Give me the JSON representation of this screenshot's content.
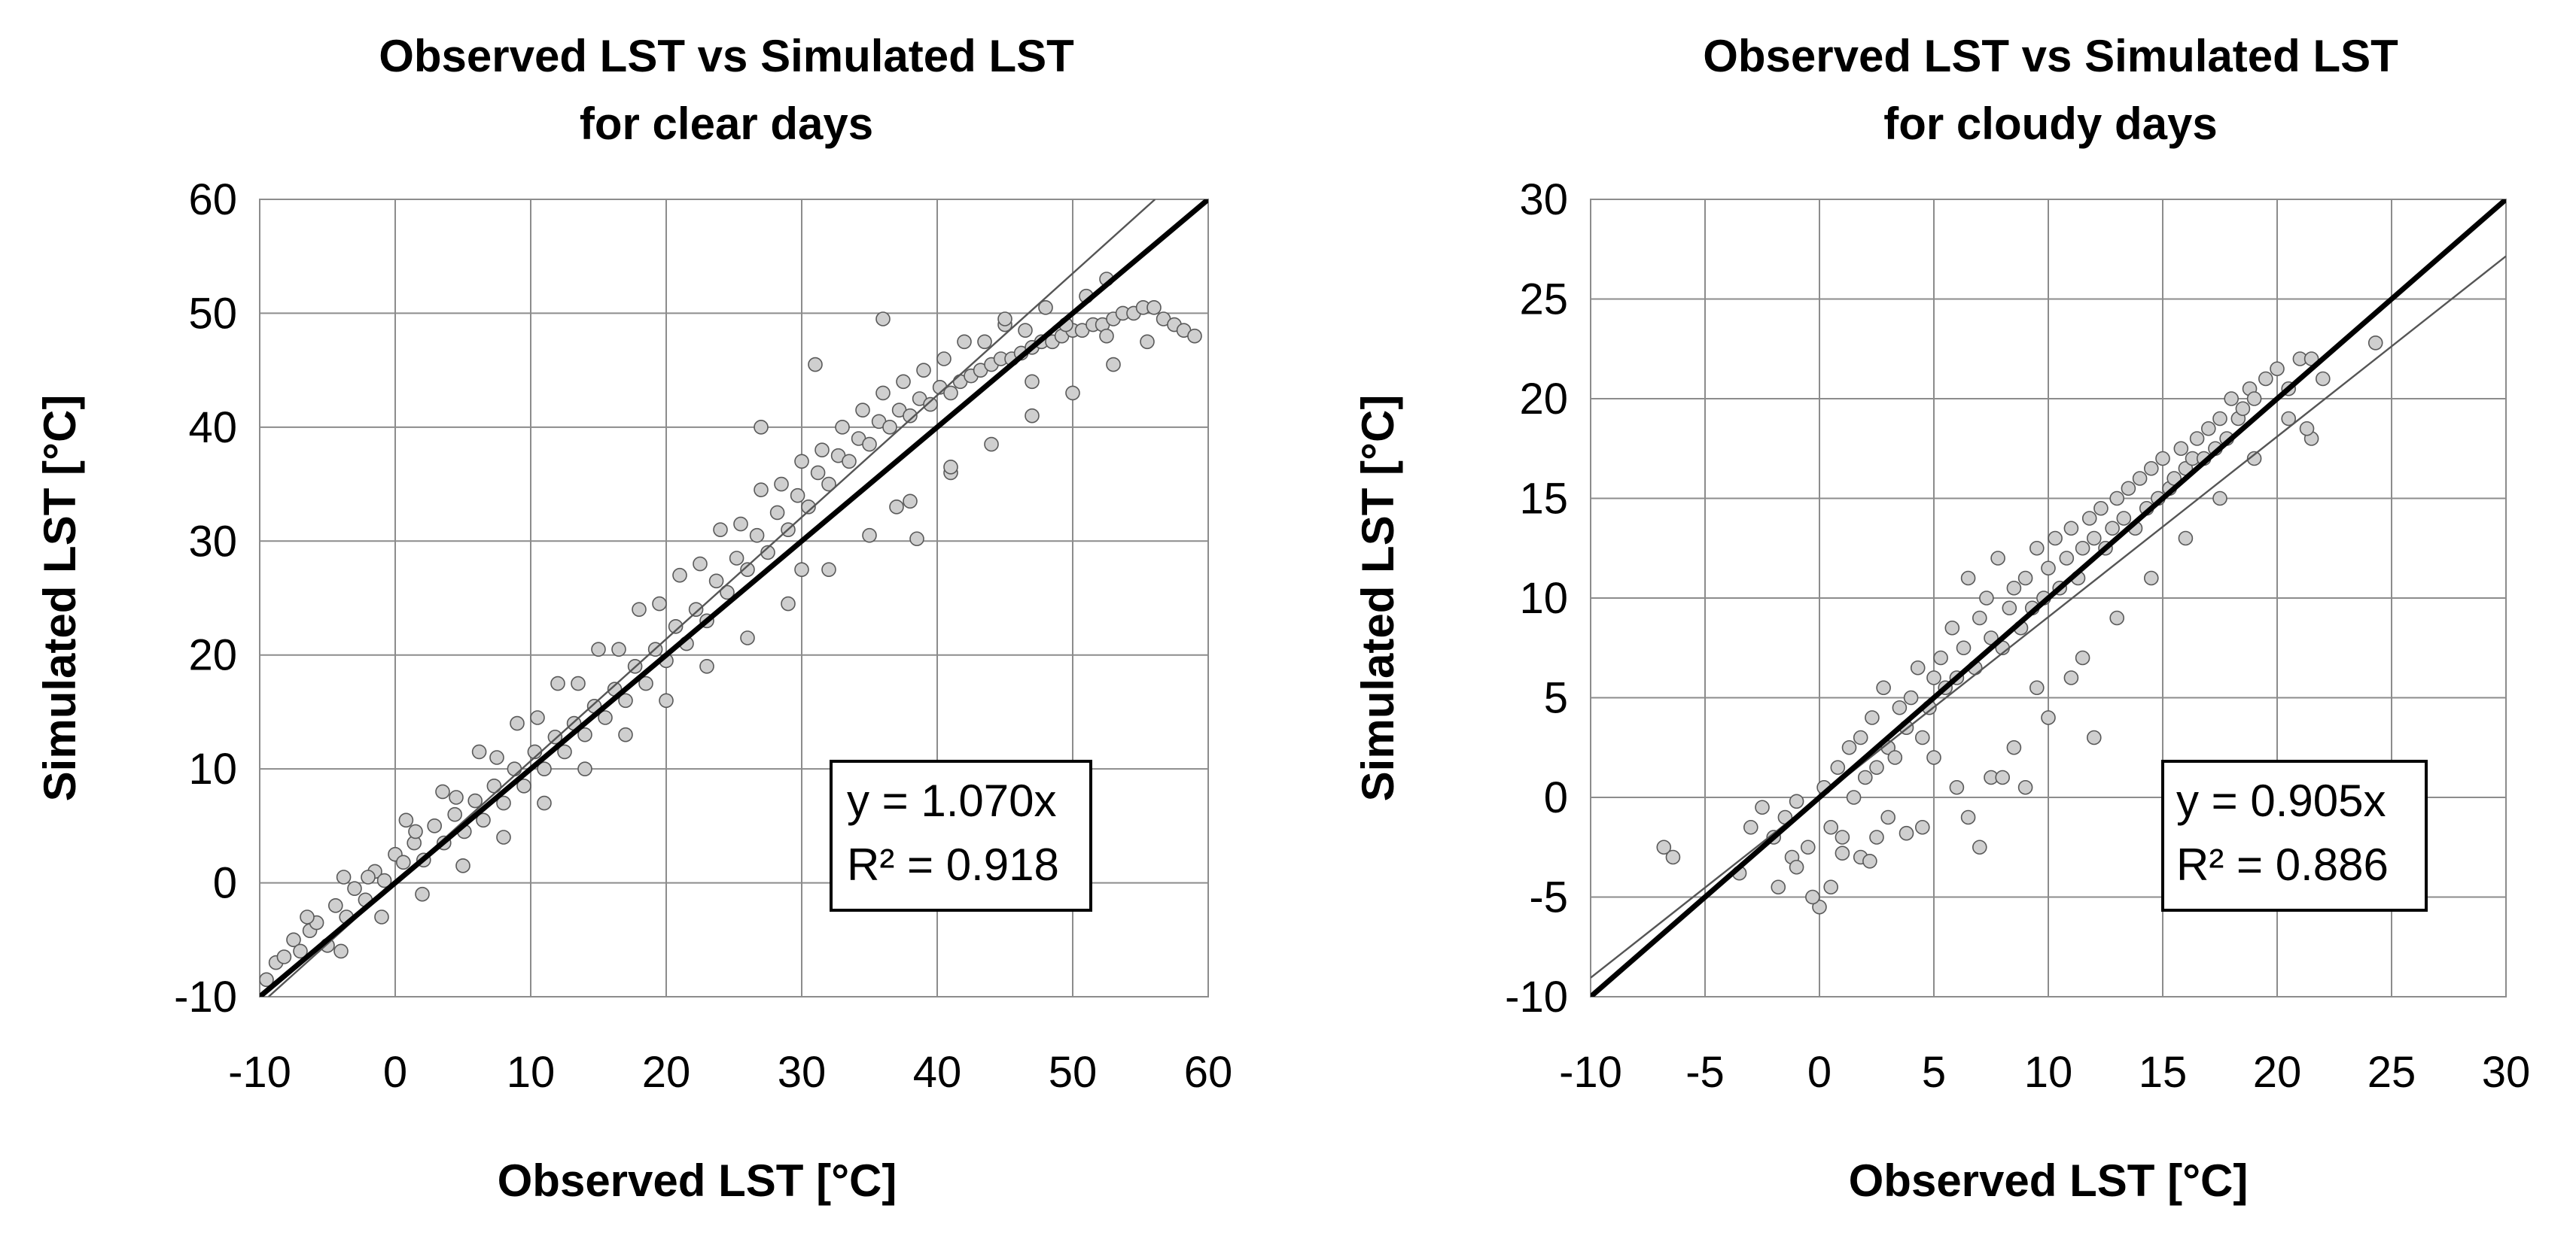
{
  "chart_data": [
    {
      "type": "scatter",
      "title": "Observed LST vs Simulated LST",
      "subtitle": "for clear days",
      "xlabel": "Observed LST [°C]",
      "ylabel": "Simulated LST [°C]",
      "xlim": [
        -10,
        60
      ],
      "ylim": [
        -10,
        60
      ],
      "xticks": [
        -10,
        0,
        10,
        20,
        30,
        40,
        50,
        60
      ],
      "yticks": [
        -10,
        0,
        10,
        20,
        30,
        40,
        50,
        60
      ],
      "xtick_labels": [
        "-10",
        "0",
        "10",
        "20",
        "30",
        "40",
        "50",
        "60"
      ],
      "ytick_labels": [
        "-10",
        "0",
        "10",
        "20",
        "30",
        "40",
        "50",
        "60"
      ],
      "grid": true,
      "reference_line": {
        "label": "1:1",
        "slope": 1
      },
      "trendline": {
        "slope": 1.07,
        "intercept": 0
      },
      "annotation": {
        "equation": "y = 1.070x",
        "r2": "R² = 0.918",
        "placement": "bottom-right"
      },
      "series": [
        {
          "name": "clear days",
          "x": [
            -9.5,
            -8.8,
            -8.2,
            -7.5,
            -7.0,
            -6.3,
            -5.8,
            -5.0,
            -4.4,
            -3.6,
            -3.0,
            -2.2,
            -1.5,
            -0.8,
            0.0,
            0.6,
            1.4,
            2.1,
            2.9,
            3.6,
            4.4,
            5.1,
            5.9,
            6.5,
            7.3,
            8.0,
            8.8,
            9.5,
            10.3,
            11.0,
            11.8,
            12.5,
            13.2,
            14.0,
            14.7,
            15.5,
            16.2,
            17.0,
            17.7,
            18.5,
            19.2,
            20.0,
            20.7,
            21.5,
            22.2,
            23.0,
            23.7,
            24.5,
            25.2,
            26.0,
            26.7,
            27.5,
            28.2,
            29.0,
            29.7,
            30.5,
            31.2,
            32.0,
            32.7,
            33.5,
            34.2,
            35.0,
            35.7,
            36.5,
            37.2,
            38.0,
            38.7,
            39.5,
            40.2,
            41.0,
            41.7,
            42.5,
            43.2,
            44.0,
            44.7,
            45.5,
            46.2,
            47.0,
            47.7,
            48.5,
            49.2,
            50.0,
            50.7,
            51.5,
            52.2,
            53.0,
            53.7,
            54.5,
            55.2,
            56.0,
            56.7,
            57.5,
            58.2,
            59.0,
            -6.5,
            -3.8,
            0.8,
            3.5,
            6.2,
            9.0,
            12.0,
            15.0,
            18.0,
            21.0,
            24.0,
            27.0,
            30.0,
            33.0,
            36.0,
            39.0,
            42.0,
            45.0,
            48.0,
            51.0,
            -4.0,
            -1.0,
            2.0,
            5.0,
            8.0,
            11.0,
            14.0,
            17.0,
            20.0,
            23.0,
            26.0,
            29.0,
            32.0,
            35.0,
            38.0,
            41.0,
            44.0,
            47.0,
            50.0,
            53.0,
            -2.0,
            1.5,
            4.5,
            7.5,
            10.5,
            13.5,
            16.5,
            19.5,
            22.5,
            25.5,
            28.5,
            31.5,
            34.5,
            37.5,
            40.5,
            43.5,
            46.5,
            49.5,
            52.5,
            55.5,
            38.5,
            36.0,
            31.0,
            27.0,
            45.0,
            30.0,
            37.0,
            41.0,
            52.5,
            47.0
          ],
          "y": [
            -8.5,
            -7.0,
            -6.5,
            -5.0,
            -6.0,
            -4.2,
            -3.5,
            -5.5,
            -2.0,
            -3.0,
            -0.5,
            -1.5,
            1.0,
            0.2,
            2.5,
            1.8,
            3.5,
            2.0,
            5.0,
            3.5,
            6.0,
            4.5,
            7.2,
            5.5,
            8.5,
            7.0,
            10.0,
            8.5,
            11.5,
            10.0,
            12.8,
            11.5,
            14.0,
            13.0,
            15.5,
            14.5,
            17.0,
            16.0,
            19.0,
            17.5,
            20.5,
            19.5,
            22.5,
            21.0,
            24.0,
            23.0,
            26.5,
            25.5,
            28.5,
            27.5,
            30.5,
            29.0,
            32.5,
            31.0,
            34.0,
            33.0,
            36.0,
            35.0,
            37.5,
            37.0,
            39.0,
            38.5,
            40.5,
            40.0,
            41.5,
            41.0,
            42.5,
            42.0,
            43.5,
            43.0,
            44.0,
            44.5,
            45.0,
            45.5,
            46.0,
            46.0,
            46.5,
            47.0,
            47.5,
            47.5,
            48.0,
            48.5,
            48.5,
            49.0,
            49.0,
            49.5,
            50.0,
            50.0,
            50.5,
            50.5,
            49.5,
            49.0,
            48.5,
            48.0,
            -3.0,
            0.5,
            5.5,
            8.0,
            11.5,
            14.0,
            17.5,
            20.5,
            24.0,
            27.0,
            31.0,
            34.5,
            37.0,
            40.0,
            43.0,
            45.0,
            47.5,
            49.0,
            50.5,
            51.5,
            -6.0,
            -3.0,
            -1.0,
            1.5,
            4.0,
            7.0,
            10.0,
            13.0,
            16.0,
            19.0,
            21.5,
            24.5,
            27.5,
            30.5,
            33.5,
            36.0,
            38.5,
            41.0,
            43.0,
            45.5,
            0.5,
            4.5,
            7.5,
            11.0,
            14.5,
            17.5,
            20.5,
            24.5,
            28.0,
            31.5,
            35.0,
            38.0,
            41.5,
            44.0,
            46.0,
            47.5,
            48.5,
            49.0,
            48.0,
            47.5,
            30.2,
            49.5,
            45.5,
            40.0,
            49.5,
            27.5,
            33.0,
            36.5,
            53.0,
            44.0
          ]
        }
      ]
    },
    {
      "type": "scatter",
      "title": "Observed LST vs Simulated LST",
      "subtitle": "for cloudy days",
      "xlabel": "Observed LST [°C]",
      "ylabel": "Simulated LST [°C]",
      "xlim": [
        -10,
        30
      ],
      "ylim": [
        -10,
        30
      ],
      "xticks": [
        -10,
        -5,
        0,
        5,
        10,
        15,
        20,
        25,
        30
      ],
      "yticks": [
        -10,
        -5,
        0,
        5,
        10,
        15,
        20,
        25,
        30
      ],
      "xtick_labels": [
        "-10",
        "-5",
        "0",
        "5",
        "10",
        "15",
        "20",
        "25",
        "30"
      ],
      "ytick_labels": [
        "-10",
        "-5",
        "0",
        "5",
        "10",
        "15",
        "20",
        "25",
        "30"
      ],
      "grid": true,
      "reference_line": {
        "label": "1:1",
        "slope": 1
      },
      "trendline": {
        "slope": 0.905,
        "intercept": 0
      },
      "annotation": {
        "equation": "y = 0.905x",
        "r2": "R² = 0.886",
        "placement": "bottom-right"
      },
      "series": [
        {
          "name": "cloudy days",
          "x": [
            -6.8,
            -6.4,
            -3.5,
            -3.0,
            -2.5,
            -2.0,
            -1.8,
            -1.5,
            -1.2,
            -1.0,
            -0.5,
            0.0,
            0.2,
            0.5,
            0.8,
            1.0,
            1.3,
            1.5,
            1.8,
            2.0,
            2.3,
            2.5,
            2.8,
            3.0,
            3.3,
            3.5,
            3.8,
            4.0,
            4.3,
            4.5,
            4.8,
            5.0,
            5.3,
            5.5,
            5.8,
            6.0,
            6.3,
            6.5,
            6.8,
            7.0,
            7.3,
            7.5,
            7.8,
            8.0,
            8.3,
            8.5,
            8.8,
            9.0,
            9.3,
            9.5,
            9.8,
            10.0,
            10.3,
            10.5,
            10.8,
            11.0,
            11.3,
            11.5,
            11.8,
            12.0,
            12.3,
            12.5,
            12.8,
            13.0,
            13.3,
            13.5,
            13.8,
            14.0,
            14.3,
            14.5,
            14.8,
            15.0,
            15.3,
            15.5,
            15.8,
            16.0,
            16.3,
            16.5,
            16.8,
            17.0,
            17.3,
            17.5,
            17.8,
            18.0,
            18.3,
            18.5,
            18.8,
            19.0,
            19.5,
            20.0,
            20.5,
            21.0,
            21.5,
            22.0,
            24.3,
            21.5,
            21.3,
            6.5,
            7.0,
            9.5,
            12.0,
            0.5,
            -0.3,
            -1.0,
            1.8,
            3.0,
            4.5,
            2.5,
            6.0,
            7.5,
            8.5,
            10.0,
            11.0,
            13.0,
            14.5,
            16.0,
            17.5,
            19.0,
            20.5,
            5.0,
            3.8,
            2.2,
            1.0,
            8.0,
            9.0,
            11.5
          ],
          "y": [
            -2.5,
            -3.0,
            -3.8,
            -1.5,
            -0.5,
            -2.0,
            -4.5,
            -1.0,
            -3.0,
            -0.2,
            -2.5,
            -5.5,
            0.5,
            -1.5,
            1.5,
            -2.0,
            2.5,
            0.0,
            3.0,
            1.0,
            4.0,
            1.5,
            5.5,
            2.5,
            2.0,
            4.5,
            3.5,
            5.0,
            6.5,
            3.0,
            4.5,
            6.0,
            7.0,
            5.5,
            8.5,
            6.0,
            7.5,
            11.0,
            6.5,
            9.0,
            10.0,
            8.0,
            12.0,
            7.5,
            9.5,
            10.5,
            8.5,
            11.0,
            9.5,
            12.5,
            10.0,
            11.5,
            13.0,
            10.5,
            12.0,
            13.5,
            11.0,
            12.5,
            14.0,
            13.0,
            14.5,
            12.5,
            13.5,
            15.0,
            14.0,
            15.5,
            13.5,
            16.0,
            14.5,
            16.5,
            15.0,
            17.0,
            15.5,
            16.0,
            17.5,
            16.5,
            17.0,
            18.0,
            17.0,
            18.5,
            17.5,
            19.0,
            18.0,
            20.0,
            19.0,
            19.5,
            20.5,
            20.0,
            21.0,
            21.5,
            20.5,
            22.0,
            22.0,
            21.0,
            22.8,
            18.0,
            18.5,
            -1.0,
            -2.5,
            5.5,
            3.0,
            -4.5,
            -5.0,
            -3.5,
            -3.0,
            -1.0,
            -1.5,
            -2.0,
            0.5,
            1.0,
            2.5,
            4.0,
            6.0,
            9.0,
            11.0,
            13.0,
            15.0,
            17.0,
            19.0,
            2.0,
            -1.8,
            -3.2,
            -2.8,
            1.0,
            0.5,
            7.0
          ]
        }
      ]
    }
  ]
}
